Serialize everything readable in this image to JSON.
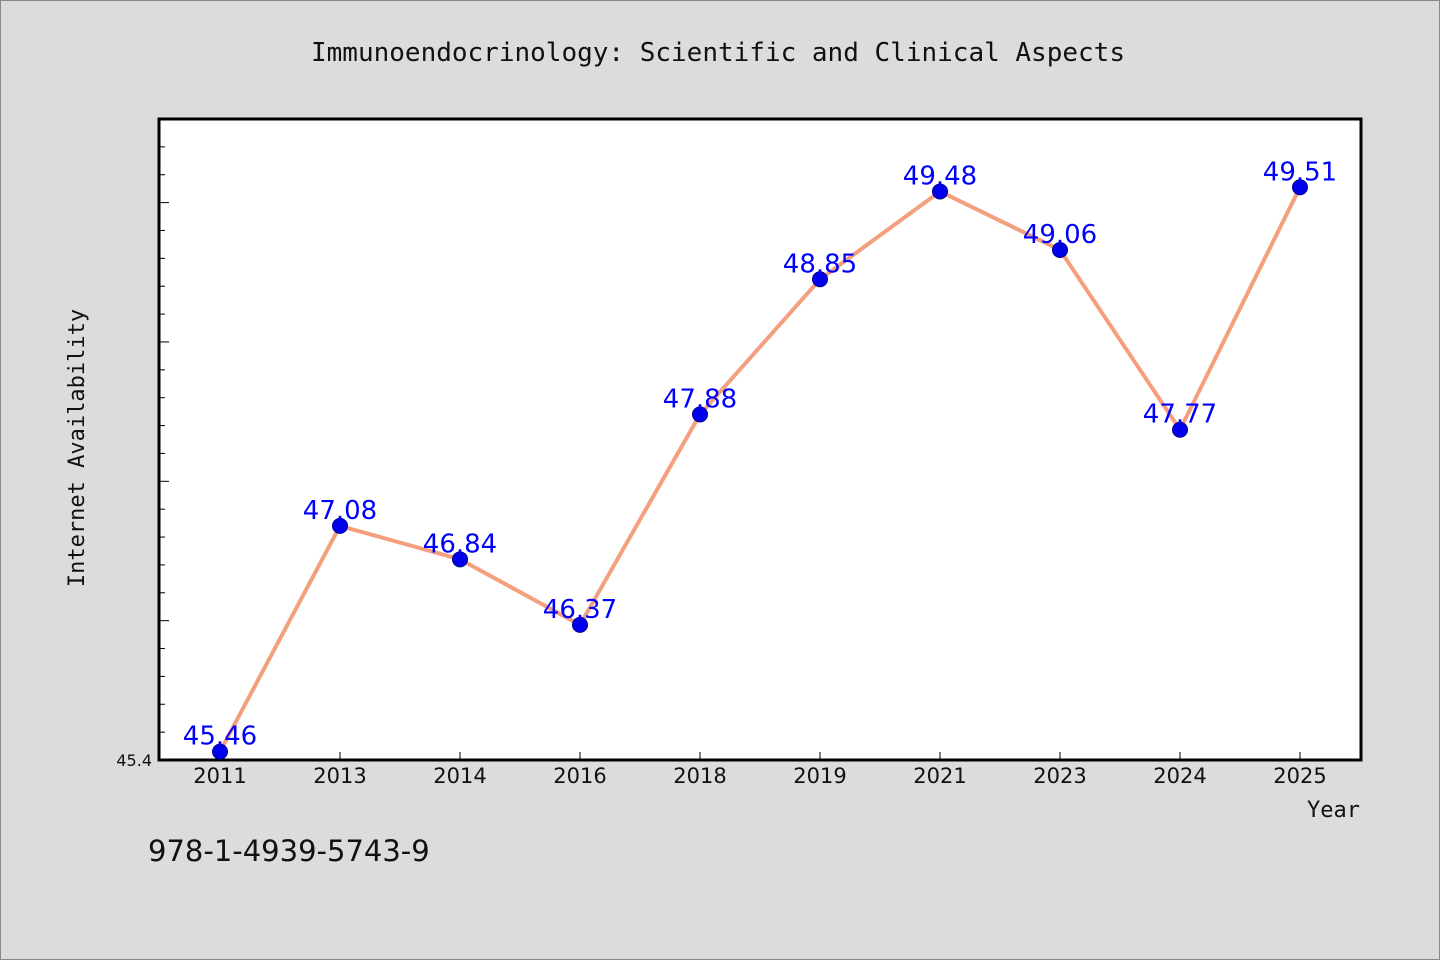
{
  "chart_data": {
    "type": "line",
    "title": "Immunoendocrinology: Scientific and Clinical Aspects",
    "xlabel": "Year",
    "ylabel": "Internet Availability",
    "categories": [
      "2011",
      "2013",
      "2014",
      "2016",
      "2018",
      "2019",
      "2021",
      "2023",
      "2024",
      "2025"
    ],
    "series": [
      {
        "values": [
          45.46,
          47.08,
          46.84,
          46.37,
          47.88,
          48.85,
          49.48,
          49.06,
          47.77,
          49.51
        ],
        "labels": [
          "45.46",
          "47.08",
          "46.84",
          "46.37",
          "47.88",
          "48.85",
          "49.48",
          "49.06",
          "47.77",
          "49.51"
        ]
      }
    ],
    "ylim": [
      45.4,
      50.0
    ],
    "yticks_labeled": [
      "45.4"
    ],
    "grid": false,
    "legend": "none",
    "colors": {
      "line": "#f4a07e",
      "marker": "#0000ee",
      "marker_edge": "#00008b",
      "data_label": "#0000ff",
      "plot_background": "#ffffff",
      "figure_background": "#dcdcdc"
    }
  },
  "footer": {
    "isbn": "978-1-4939-5743-9"
  }
}
